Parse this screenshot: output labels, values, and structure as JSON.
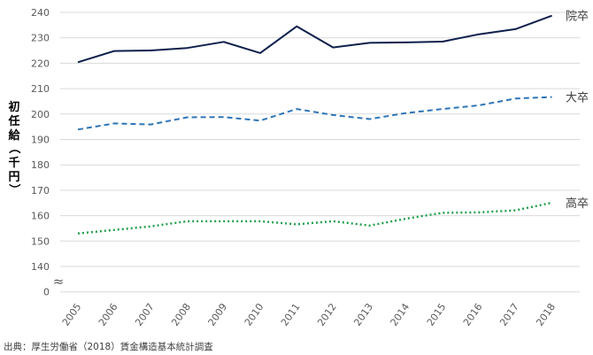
{
  "chart_data": {
    "type": "line",
    "x": [
      "2005",
      "2006",
      "2007",
      "2008",
      "2009",
      "2010",
      "2011",
      "2012",
      "2013",
      "2014",
      "2015",
      "2016",
      "2017",
      "2018"
    ],
    "ylabel": "初任給（千円）",
    "y_ticks": [
      "240",
      "230",
      "220",
      "210",
      "200",
      "190",
      "180",
      "170",
      "160",
      "150",
      "140",
      "0"
    ],
    "axis_break": "≈",
    "ylim": [
      140,
      240
    ],
    "grid": true,
    "series": [
      {
        "name": "院卒",
        "color": "#0d1f4c",
        "style": "solid",
        "values": [
          220.4,
          224.8,
          225.0,
          226.0,
          228.4,
          224.0,
          234.5,
          226.2,
          228.0,
          228.2,
          228.5,
          231.4,
          233.4,
          238.7
        ]
      },
      {
        "name": "大卒",
        "color": "#2e75b6",
        "style": "dashed",
        "values": [
          193.9,
          196.3,
          195.9,
          198.7,
          198.8,
          197.4,
          202.0,
          199.6,
          198.0,
          200.4,
          202.0,
          203.4,
          206.1,
          206.7
        ]
      },
      {
        "name": "高卒",
        "color": "#1e9e4a",
        "style": "dotted",
        "values": [
          153.0,
          154.4,
          155.8,
          157.8,
          157.8,
          157.8,
          156.6,
          157.8,
          156.1,
          158.8,
          161.1,
          161.3,
          162.1,
          165.1
        ]
      }
    ]
  },
  "source_text": "出典：厚生労働省（2018）賃金構造基本統計調査"
}
